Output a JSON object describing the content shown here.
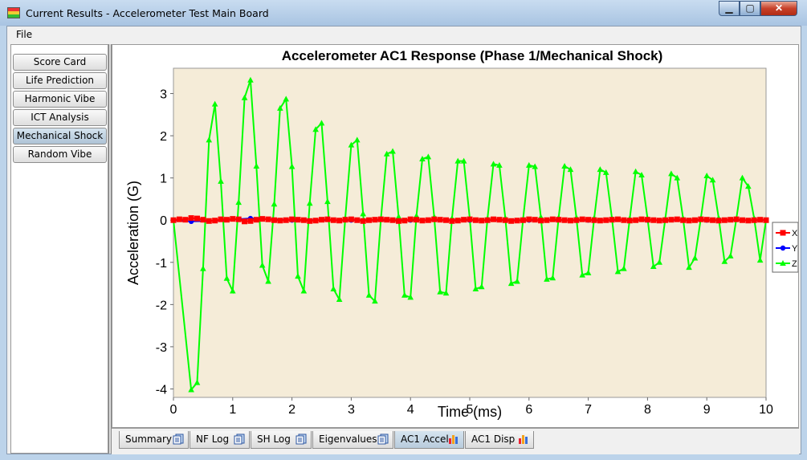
{
  "window": {
    "title": "Current Results - Accelerometer Test Main Board",
    "minimize_glyph": "▁",
    "maximize_glyph": "▢",
    "close_glyph": "✕"
  },
  "menu": {
    "file": "File"
  },
  "sidebar": {
    "items": [
      {
        "label": "Score Card"
      },
      {
        "label": "Life Prediction"
      },
      {
        "label": "Harmonic Vibe"
      },
      {
        "label": "ICT Analysis"
      },
      {
        "label": "Mechanical Shock",
        "active": true
      },
      {
        "label": "Random Vibe"
      }
    ]
  },
  "tabs": [
    {
      "label": "Summary",
      "icon": "document-icon"
    },
    {
      "label": "NF Log",
      "icon": "document-icon"
    },
    {
      "label": "SH Log",
      "icon": "document-icon"
    },
    {
      "label": "Eigenvalues",
      "icon": "document-icon"
    },
    {
      "label": "AC1 Accel",
      "icon": "bar-chart-icon",
      "active": true
    },
    {
      "label": "AC1 Disp",
      "icon": "bar-chart-icon"
    }
  ],
  "colors": {
    "plot_background": "#f5ecd8",
    "x_series": "#ff0000",
    "y_series": "#0000ff",
    "z_series": "#00ff00"
  },
  "chart_data": {
    "type": "line",
    "title": "Accelerometer AC1 Response (Phase 1/Mechanical Shock)",
    "xlabel": "Time (ms)",
    "ylabel": "Acceleration (G)",
    "xlim": [
      0,
      10
    ],
    "ylim": [
      -4.2,
      3.6
    ],
    "xticks": [
      0,
      1,
      2,
      3,
      4,
      5,
      6,
      7,
      8,
      9,
      10
    ],
    "yticks": [
      -4,
      -3,
      -2,
      -1,
      0,
      1,
      2,
      3
    ],
    "legend": "right",
    "grid": false,
    "series": [
      {
        "name": "X",
        "marker": "square",
        "x": [
          0,
          0.1,
          0.2,
          0.3,
          0.4,
          0.5,
          0.6,
          0.7,
          0.8,
          0.9,
          1.0,
          1.1,
          1.2,
          1.3,
          1.4,
          1.5,
          1.6,
          1.7,
          1.8,
          1.9,
          2.0,
          2.1,
          2.2,
          2.3,
          2.4,
          2.5,
          2.6,
          2.7,
          2.8,
          2.9,
          3.0,
          3.1,
          3.2,
          3.3,
          3.4,
          3.5,
          3.6,
          3.7,
          3.8,
          3.9,
          4.0,
          4.1,
          4.2,
          4.3,
          4.4,
          4.5,
          4.6,
          4.7,
          4.8,
          4.9,
          5.0,
          5.1,
          5.2,
          5.3,
          5.4,
          5.5,
          5.6,
          5.7,
          5.8,
          5.9,
          6.0,
          6.1,
          6.2,
          6.3,
          6.4,
          6.5,
          6.6,
          6.7,
          6.8,
          6.9,
          7.0,
          7.1,
          7.2,
          7.3,
          7.4,
          7.5,
          7.6,
          7.7,
          7.8,
          7.9,
          8.0,
          8.1,
          8.2,
          8.3,
          8.4,
          8.5,
          8.6,
          8.7,
          8.8,
          8.9,
          9.0,
          9.1,
          9.2,
          9.3,
          9.4,
          9.5,
          9.6,
          9.7,
          9.8,
          9.9,
          10.0
        ],
        "y": [
          0,
          0.02,
          0.01,
          0.05,
          0.04,
          0.01,
          -0.02,
          -0.01,
          0.02,
          0.01,
          0.03,
          0.02,
          -0.03,
          -0.02,
          0.01,
          0.03,
          0.02,
          0.0,
          -0.01,
          0.0,
          0.02,
          0.01,
          0.0,
          -0.02,
          -0.01,
          0.01,
          0.02,
          0.0,
          -0.01,
          0.01,
          0.02,
          0.0,
          -0.02,
          0.0,
          0.01,
          0.02,
          0.01,
          0.0,
          -0.02,
          -0.01,
          0.02,
          0.01,
          -0.01,
          0.0,
          0.02,
          0.01,
          0.0,
          -0.02,
          -0.01,
          0.01,
          0.02,
          0.0,
          -0.01,
          0.0,
          0.02,
          0.01,
          0.0,
          -0.02,
          -0.01,
          0.0,
          0.02,
          0.01,
          -0.01,
          0.0,
          0.02,
          0.01,
          0.0,
          -0.01,
          0.0,
          0.02,
          0.01,
          0.0,
          -0.01,
          0.0,
          0.01,
          0.02,
          0.0,
          -0.01,
          0.0,
          0.02,
          0.01,
          0.0,
          -0.01,
          0.0,
          0.01,
          0.02,
          0.0,
          -0.01,
          0.0,
          0.02,
          0.01,
          0.0,
          -0.01,
          0.0,
          0.01,
          0.02,
          0.0,
          -0.01,
          0.0,
          0.01,
          0.0
        ]
      },
      {
        "name": "Y",
        "marker": "circle",
        "x": [
          0,
          0.3,
          0.6,
          1.3,
          2.0,
          3.0,
          4.0,
          5.0,
          6.0,
          7.0,
          8.0,
          9.0,
          10.0
        ],
        "y": [
          0,
          -0.03,
          -0.02,
          0.04,
          0.0,
          0.0,
          0.0,
          0.0,
          0.0,
          0.0,
          0.0,
          0.0,
          0.0
        ]
      },
      {
        "name": "Z",
        "marker": "triangle",
        "x": [
          0,
          0.3,
          0.4,
          0.5,
          0.6,
          0.7,
          0.8,
          0.9,
          1.0,
          1.1,
          1.2,
          1.3,
          1.4,
          1.5,
          1.6,
          1.7,
          1.8,
          1.9,
          2.0,
          2.1,
          2.2,
          2.3,
          2.4,
          2.5,
          2.6,
          2.7,
          2.8,
          2.9,
          3.0,
          3.1,
          3.2,
          3.3,
          3.4,
          3.5,
          3.6,
          3.7,
          3.8,
          3.9,
          4.0,
          4.1,
          4.2,
          4.3,
          4.4,
          4.5,
          4.6,
          4.7,
          4.8,
          4.9,
          5.0,
          5.1,
          5.2,
          5.3,
          5.4,
          5.5,
          5.6,
          5.7,
          5.8,
          5.9,
          6.0,
          6.1,
          6.2,
          6.3,
          6.4,
          6.5,
          6.6,
          6.7,
          6.8,
          6.9,
          7.0,
          7.1,
          7.2,
          7.3,
          7.4,
          7.5,
          7.6,
          7.7,
          7.8,
          7.9,
          8.0,
          8.1,
          8.2,
          8.3,
          8.4,
          8.5,
          8.6,
          8.7,
          8.8,
          8.9,
          9.0,
          9.1,
          9.2,
          9.3,
          9.4,
          9.5,
          9.6,
          9.7,
          9.8,
          9.9,
          10.0
        ],
        "y": [
          0,
          -4.02,
          -3.85,
          -1.15,
          1.9,
          2.75,
          0.92,
          -1.38,
          -1.68,
          0.42,
          2.9,
          3.32,
          1.28,
          -1.07,
          -1.45,
          0.38,
          2.65,
          2.87,
          1.27,
          -1.33,
          -1.68,
          0.4,
          2.15,
          2.3,
          0.44,
          -1.63,
          -1.88,
          0.05,
          1.78,
          1.9,
          0.15,
          -1.78,
          -1.92,
          0.02,
          1.57,
          1.63,
          0.08,
          -1.78,
          -1.83,
          0.1,
          1.45,
          1.5,
          0.08,
          -1.7,
          -1.73,
          0.04,
          1.4,
          1.4,
          0.04,
          -1.63,
          -1.58,
          0.04,
          1.33,
          1.3,
          0.05,
          -1.5,
          -1.45,
          0.02,
          1.3,
          1.27,
          0.07,
          -1.4,
          -1.37,
          0.06,
          1.28,
          1.2,
          0.06,
          -1.3,
          -1.25,
          0.05,
          1.2,
          1.13,
          0.04,
          -1.22,
          -1.15,
          0.04,
          1.15,
          1.07,
          0.04,
          -1.1,
          -1.0,
          0.03,
          1.1,
          1.0,
          0.04,
          -1.12,
          -0.9,
          0.04,
          1.05,
          0.95,
          0.05,
          -0.98,
          -0.85,
          0.04,
          1.0,
          0.8,
          0.04,
          -0.95,
          0.0
        ]
      }
    ]
  }
}
